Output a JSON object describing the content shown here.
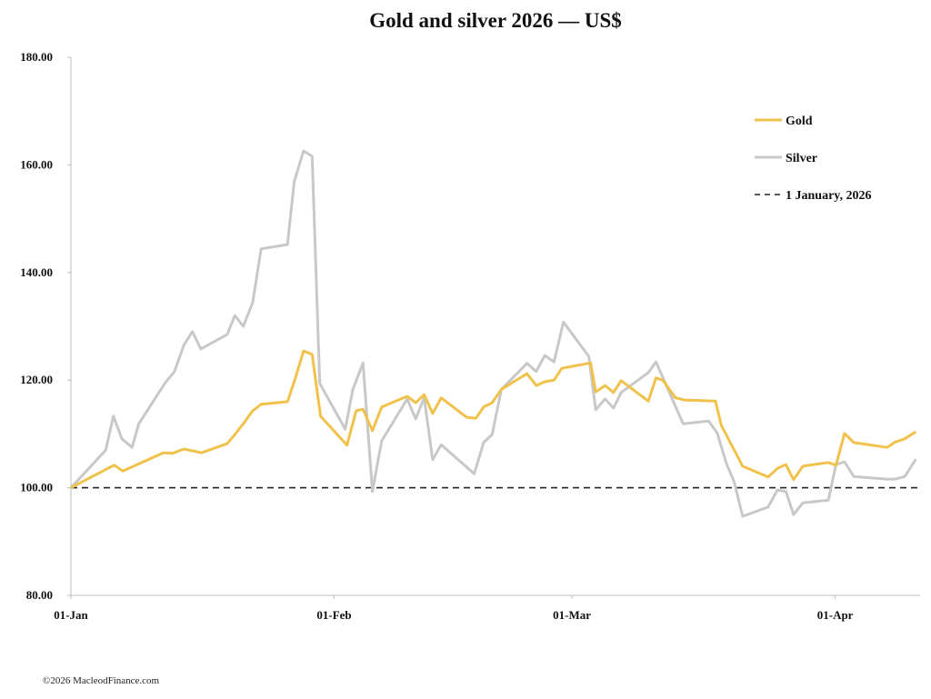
{
  "chart_data": {
    "type": "line",
    "title": "Gold and silver 2026 — US$",
    "xlabel": "",
    "ylabel": "",
    "x_unit": "days since 1 January 2026",
    "xlim": [
      0,
      100
    ],
    "ylim": [
      80,
      180
    ],
    "y_ticks": [
      "80.00",
      "100.00",
      "120.00",
      "140.00",
      "160.00",
      "180.00"
    ],
    "y_tick_values": [
      80,
      100,
      120,
      140,
      160,
      180
    ],
    "x_ticks": [
      "01-Jan",
      "01-Feb",
      "01-Mar",
      "01-Apr"
    ],
    "x_tick_values": [
      0,
      31,
      59,
      90
    ],
    "grid": false,
    "legend_position": "top-right",
    "reference_line": {
      "name": "1 January, 2026",
      "value": 100,
      "color": "#222222"
    },
    "series": [
      {
        "name": "Gold",
        "color": "#F0C24B",
        "x": [
          0,
          5.1,
          6.1,
          10.9,
          12.0,
          13.3,
          15.4,
          18.4,
          19.3,
          20.3,
          21.4,
          22.4,
          25.5,
          26.3,
          27.4,
          28.4,
          29.4,
          32.5,
          33.6,
          34.4,
          35.5,
          36.6,
          39.6,
          40.6,
          41.6,
          42.6,
          43.6,
          46.6,
          47.7,
          48.6,
          49.6,
          50.7,
          53.7,
          54.8,
          55.8,
          56.9,
          57.8,
          61.2,
          61.8,
          62.9,
          63.9,
          64.8,
          68.0,
          68.9,
          69.7,
          71.2,
          72.3,
          75.9,
          76.6,
          79.1,
          82.1,
          83.2,
          84.2,
          85.1,
          86.2,
          89.2,
          90.1,
          91.1,
          92.2,
          96.1,
          97.1,
          98.2,
          99.5
        ],
        "values": [
          100,
          104.2,
          103.1,
          106.5,
          106.4,
          107.2,
          106.5,
          108.2,
          109.9,
          111.9,
          114.3,
          115.5,
          116.0,
          119.7,
          125.4,
          124.8,
          113.3,
          107.9,
          114.3,
          114.6,
          110.6,
          115.0,
          117.0,
          115.8,
          117.3,
          113.8,
          116.7,
          113.1,
          112.9,
          115.0,
          115.8,
          118.3,
          121.2,
          119.0,
          119.7,
          120.0,
          122.2,
          123.2,
          117.8,
          119.0,
          117.7,
          119.9,
          116.1,
          120.4,
          120.0,
          116.7,
          116.3,
          116.1,
          111.6,
          104.0,
          102.0,
          103.6,
          104.3,
          101.5,
          104.0,
          104.7,
          104.2,
          110.1,
          108.4,
          107.5,
          108.5,
          109.1,
          110.4
        ]
      },
      {
        "name": "Silver",
        "color": "#C8C8C8",
        "x": [
          0,
          4.1,
          5.0,
          6.0,
          7.2,
          8.0,
          11.1,
          12.2,
          13.3,
          14.3,
          15.3,
          18.4,
          19.3,
          20.3,
          21.4,
          22.4,
          25.5,
          26.3,
          27.4,
          28.4,
          29.3,
          32.3,
          33.2,
          34.4,
          35.5,
          36.6,
          39.6,
          40.6,
          41.6,
          42.6,
          43.6,
          47.5,
          48.6,
          49.6,
          50.7,
          53.7,
          54.8,
          55.8,
          56.9,
          58.0,
          61.0,
          61.8,
          62.9,
          63.9,
          64.8,
          68.0,
          68.9,
          69.7,
          71.2,
          72.1,
          75.1,
          76.1,
          77.2,
          78.1,
          79.1,
          82.1,
          83.2,
          84.2,
          85.1,
          86.2,
          89.2,
          90.1,
          91.1,
          92.2,
          96.1,
          97.1,
          98.2,
          99.5
        ],
        "values": [
          100,
          107.0,
          113.3,
          109.1,
          107.5,
          111.9,
          119.5,
          121.6,
          126.5,
          129.0,
          125.8,
          128.5,
          132.0,
          130.0,
          134.4,
          144.4,
          145.2,
          156.9,
          162.6,
          161.6,
          119.4,
          110.9,
          118.3,
          123.2,
          99.3,
          108.7,
          116.5,
          112.8,
          116.7,
          105.2,
          108.0,
          102.6,
          108.4,
          109.9,
          118.3,
          123.1,
          121.6,
          124.6,
          123.4,
          130.8,
          124.4,
          114.5,
          116.5,
          114.8,
          117.7,
          121.4,
          123.4,
          120.5,
          115.1,
          111.9,
          112.4,
          110.2,
          104.5,
          101.1,
          94.7,
          96.4,
          99.6,
          99.3,
          95.0,
          97.2,
          97.7,
          104.3,
          104.8,
          102.1,
          101.6,
          101.6,
          102.1,
          105.3
        ]
      }
    ]
  },
  "footer": "©2026 MacleodFinance.com"
}
